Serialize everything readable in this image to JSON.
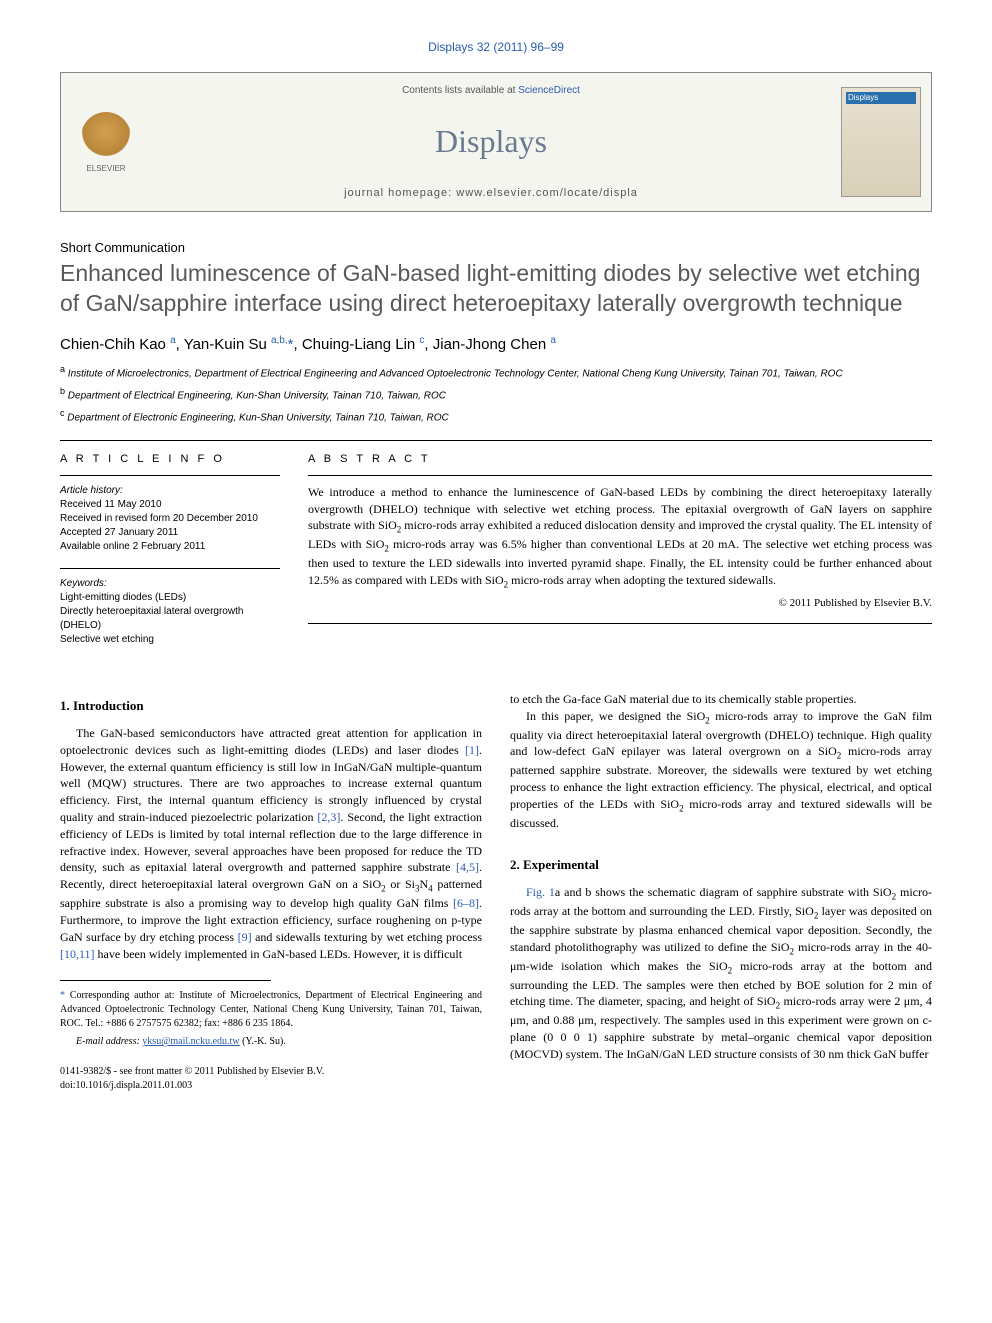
{
  "article_ref": "Displays 32 (2011) 96–99",
  "header": {
    "contents_text": "Contents lists available at ",
    "contents_link": "ScienceDirect",
    "journal_name": "Displays",
    "homepage_label": "journal homepage: ",
    "homepage_url": "www.elsevier.com/locate/displa",
    "publisher": "ELSEVIER",
    "cover_label": "Displays"
  },
  "article_type": "Short Communication",
  "title": "Enhanced luminescence of GaN-based light-emitting diodes by selective wet etching of GaN/sapphire interface using direct heteroepitaxy laterally overgrowth technique",
  "authors_html": "Chien-Chih Kao <sup>a</sup>, Yan-Kuin Su <sup>a,b,</sup><span class='star'>*</span>, Chuing-Liang Lin <sup>c</sup>, Jian-Jhong Chen <sup>a</sup>",
  "affiliations": [
    {
      "sup": "a",
      "text": "Institute of Microelectronics, Department of Electrical Engineering and Advanced Optoelectronic Technology Center, National Cheng Kung University, Tainan 701, Taiwan, ROC"
    },
    {
      "sup": "b",
      "text": "Department of Electrical Engineering, Kun-Shan University, Tainan 710, Taiwan, ROC"
    },
    {
      "sup": "c",
      "text": "Department of Electronic Engineering, Kun-Shan University, Tainan 710, Taiwan, ROC"
    }
  ],
  "info": {
    "head": "A R T I C L E   I N F O",
    "history_label": "Article history:",
    "history": [
      "Received 11 May 2010",
      "Received in revised form 20 December 2010",
      "Accepted 27 January 2011",
      "Available online 2 February 2011"
    ],
    "keywords_label": "Keywords:",
    "keywords": [
      "Light-emitting diodes (LEDs)",
      "Directly heteroepitaxial lateral overgrowth (DHELO)",
      "Selective wet etching"
    ]
  },
  "abstract": {
    "head": "A B S T R A C T",
    "text": "We introduce a method to enhance the luminescence of GaN-based LEDs by combining the direct heteroepitaxy laterally overgrowth (DHELO) technique with selective wet etching process. The epitaxial overgrowth of GaN layers on sapphire substrate with SiO₂ micro-rods array exhibited a reduced dislocation density and improved the crystal quality. The EL intensity of LEDs with SiO₂ micro-rods array was 6.5% higher than conventional LEDs at 20 mA. The selective wet etching process was then used to texture the LED sidewalls into inverted pyramid shape. Finally, the EL intensity could be further enhanced about 12.5% as compared with LEDs with SiO₂ micro-rods array when adopting the textured sidewalls.",
    "copyright": "© 2011 Published by Elsevier B.V."
  },
  "sections": {
    "intro_head": "1. Introduction",
    "intro_p1": "The GaN-based semiconductors have attracted great attention for application in optoelectronic devices such as light-emitting diodes (LEDs) and laser diodes [1]. However, the external quantum efficiency is still low in InGaN/GaN multiple-quantum well (MQW) structures. There are two approaches to increase external quantum efficiency. First, the internal quantum efficiency is strongly influenced by crystal quality and strain-induced piezoelectric polarization [2,3]. Second, the light extraction efficiency of LEDs is limited by total internal reflection due to the large difference in refractive index. However, several approaches have been proposed for reduce the TD density, such as epitaxial lateral overgrowth and patterned sapphire substrate [4,5]. Recently, direct heteroepitaxial lateral overgrown GaN on a SiO₂ or Si₃N₄ patterned sapphire substrate is also a promising way to develop high quality GaN films [6–8]. Furthermore, to improve the light extraction efficiency, surface roughening on p-type GaN surface by dry etching process [9] and sidewalls texturing by wet etching process [10,11] have been widely implemented in GaN-based LEDs. However, it is difficult",
    "intro_p2": "to etch the Ga-face GaN material due to its chemically stable properties.",
    "intro_p3": "In this paper, we designed the SiO₂ micro-rods array to improve the GaN film quality via direct heteroepitaxial lateral overgrowth (DHELO) technique. High quality and low-defect GaN epilayer was lateral overgrown on a SiO₂ micro-rods array patterned sapphire substrate. Moreover, the sidewalls were textured by wet etching process to enhance the light extraction efficiency. The physical, electrical, and optical properties of the LEDs with SiO₂ micro-rods array and textured sidewalls will be discussed.",
    "exp_head": "2. Experimental",
    "exp_p1": "Fig. 1a and b shows the schematic diagram of sapphire substrate with SiO₂ micro-rods array at the bottom and surrounding the LED. Firstly, SiO₂ layer was deposited on the sapphire substrate by plasma enhanced chemical vapor deposition. Secondly, the standard photolithography was utilized to define the SiO₂ micro-rods array in the 40-μm-wide isolation which makes the SiO₂ micro-rods array at the bottom and surrounding the LED. The samples were then etched by BOE solution for 2 min of etching time. The diameter, spacing, and height of SiO₂ micro-rods array were 2 μm, 4 μm, and 0.88 μm, respectively. The samples used in this experiment were grown on c-plane (0 0 0 1) sapphire substrate by metal–organic chemical vapor deposition (MOCVD) system. The InGaN/GaN LED structure consists of 30 nm thick GaN buffer"
  },
  "footnote": {
    "corr": "Corresponding author at: Institute of Microelectronics, Department of Electrical Engineering and Advanced Optoelectronic Technology Center, National Cheng Kung University, Tainan 701, Taiwan, ROC. Tel.: +886 6 2757575 62382; fax: +886 6 235 1864.",
    "email_label": "E-mail address: ",
    "email": "yksu@mail.ncku.edu.tw",
    "email_person": " (Y.-K. Su)."
  },
  "footer": {
    "line1": "0141-9382/$ - see front matter © 2011 Published by Elsevier B.V.",
    "line2": "doi:10.1016/j.displa.2011.01.003"
  },
  "colors": {
    "link": "#2a5caa",
    "title_gray": "#58595b",
    "journal_gray": "#6b7a8f"
  }
}
